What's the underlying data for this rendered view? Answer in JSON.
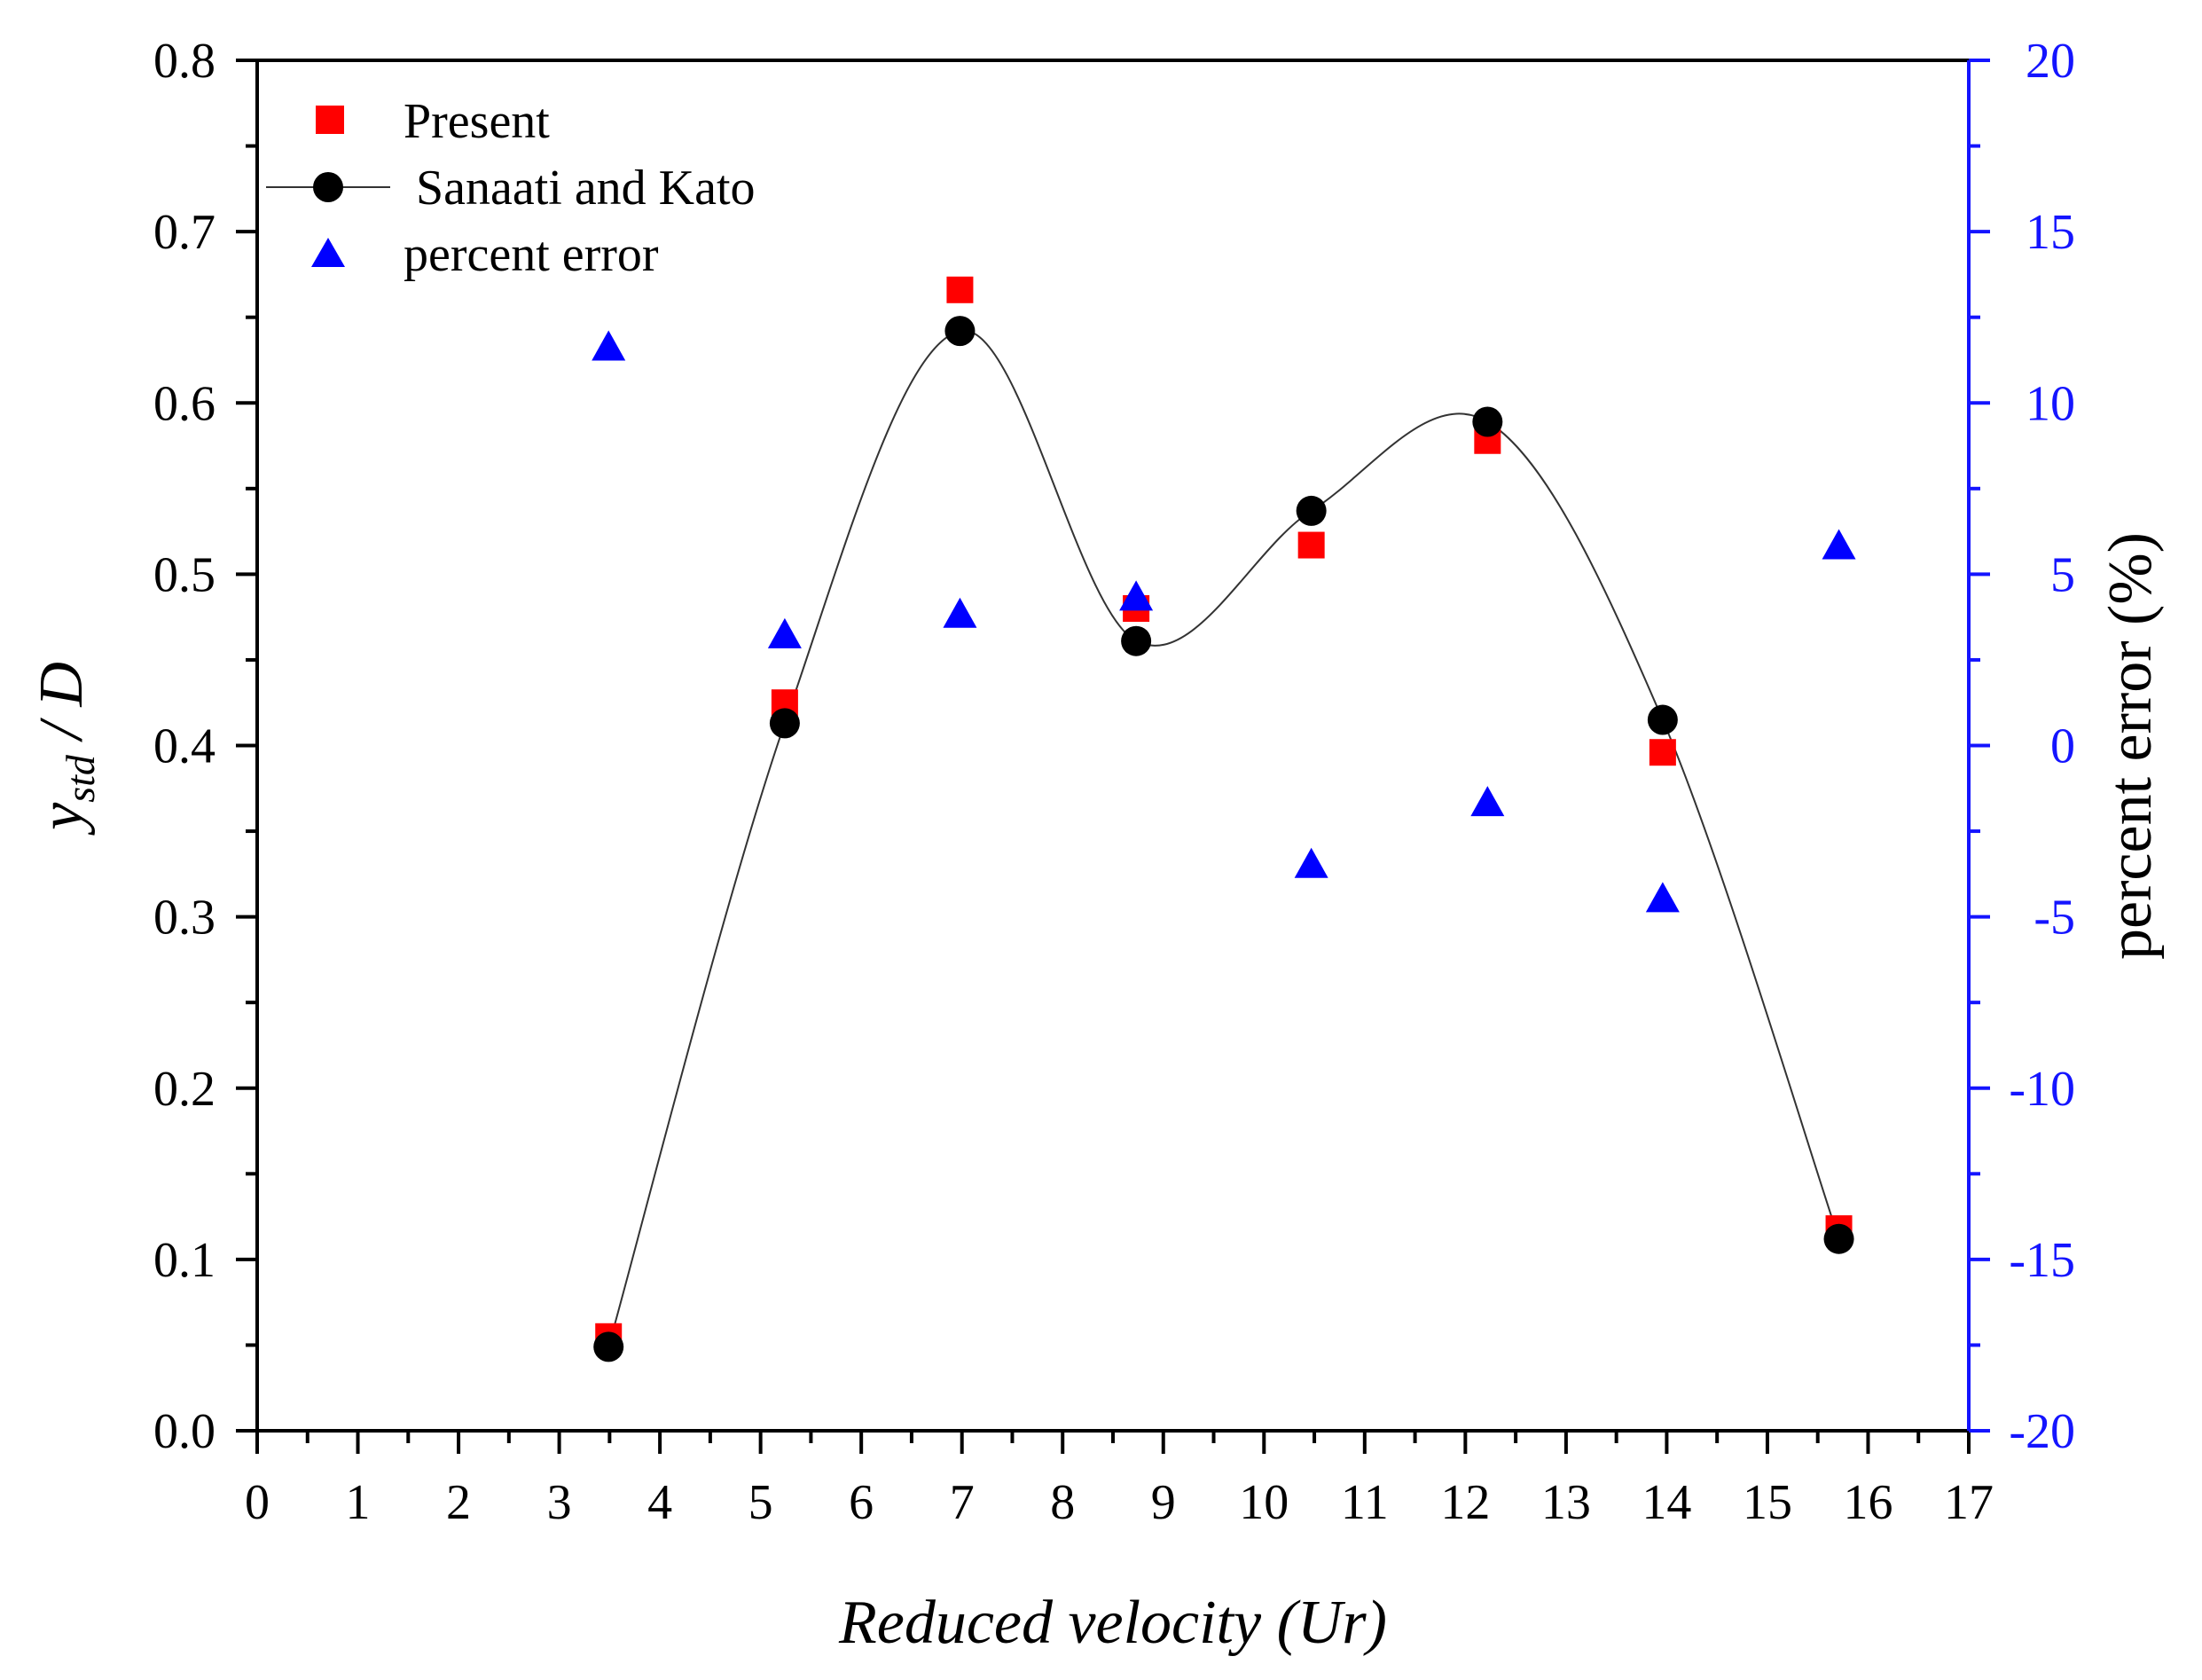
{
  "chart_data": {
    "type": "scatter",
    "xlabel": "Reduced velocity (Ur)",
    "ylabel_main": "y",
    "ylabel_sub": "std",
    "ylabel_tail": " / D",
    "y2label": "percent error (%)",
    "xlim": [
      0,
      17
    ],
    "ylim": [
      0.0,
      0.8
    ],
    "y2lim": [
      -20,
      20
    ],
    "xticks": [
      0,
      1,
      2,
      3,
      4,
      5,
      6,
      7,
      8,
      9,
      10,
      11,
      12,
      13,
      14,
      15,
      16,
      17
    ],
    "xtick_labels": [
      "0",
      "1",
      "2",
      "3",
      "4",
      "5",
      "6",
      "7",
      "8",
      "9",
      "10",
      "11",
      "12",
      "13",
      "14",
      "15",
      "16",
      "17"
    ],
    "yticks": [
      0.0,
      0.1,
      0.2,
      0.3,
      0.4,
      0.5,
      0.6,
      0.7,
      0.8
    ],
    "ytick_labels": [
      "0.0",
      "0.1",
      "0.2",
      "0.3",
      "0.4",
      "0.5",
      "0.6",
      "0.7",
      "0.8"
    ],
    "y2ticks": [
      -20,
      -15,
      -10,
      -5,
      0,
      5,
      10,
      15,
      20
    ],
    "y2tick_labels": [
      "-20",
      "-15",
      "-10",
      "-5",
      "0",
      "5",
      "10",
      "15",
      "20"
    ],
    "legend_position": "top-left",
    "series": [
      {
        "name": "Present",
        "legend_label": "Present",
        "marker": "square",
        "color": "#ff0000",
        "axis": "left",
        "x": [
          3.49,
          5.24,
          6.98,
          8.73,
          10.47,
          12.22,
          13.96,
          15.71
        ],
        "y": [
          0.055,
          0.425,
          0.666,
          0.48,
          0.517,
          0.578,
          0.396,
          0.118
        ]
      },
      {
        "name": "Sanaati and Kato",
        "legend_label": " Sanaati and Kato",
        "marker": "circle",
        "color": "#000000",
        "line": "smooth",
        "axis": "left",
        "x": [
          3.49,
          5.24,
          6.98,
          8.73,
          10.47,
          12.22,
          13.96,
          15.71
        ],
        "y": [
          0.049,
          0.413,
          0.642,
          0.461,
          0.537,
          0.589,
          0.415,
          0.112
        ]
      },
      {
        "name": "percent error",
        "legend_label": "percent error",
        "marker": "triangle",
        "color": "#0000ff",
        "axis": "right",
        "x": [
          3.49,
          5.24,
          6.98,
          8.73,
          10.47,
          12.22,
          13.96,
          15.71
        ],
        "y": [
          11.6,
          3.2,
          3.8,
          4.3,
          -3.5,
          -1.7,
          -4.5,
          5.8
        ]
      }
    ]
  }
}
